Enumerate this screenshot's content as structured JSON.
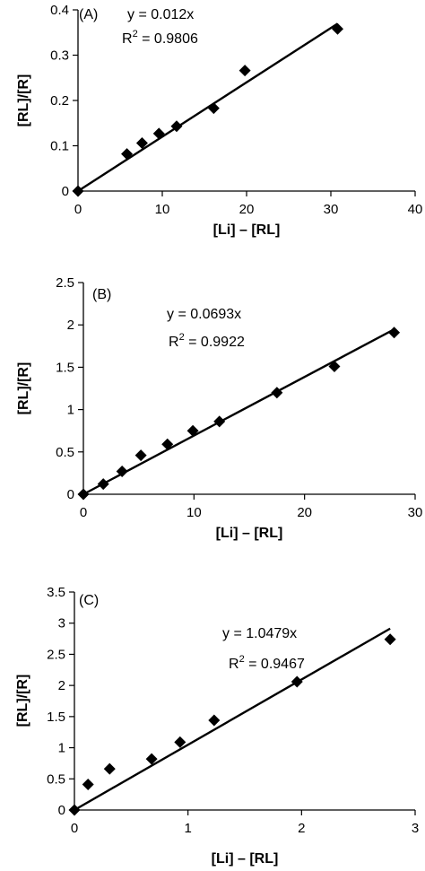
{
  "chart_data": [
    {
      "type": "scatter",
      "panel_label": "(A)",
      "xlabel": "[Li] – [RL]",
      "ylabel": "[RL]/[R]",
      "xlim": [
        0,
        40
      ],
      "ylim": [
        0,
        0.4
      ],
      "x_ticks": [
        0,
        10,
        20,
        30,
        40
      ],
      "y_ticks": [
        0,
        0.1,
        0.2,
        0.3,
        0.4
      ],
      "grid": false,
      "series": [
        {
          "marker": "diamond",
          "color": "#000000",
          "points": [
            {
              "x": 0,
              "y": 0
            },
            {
              "x": 5.8,
              "y": 0.082
            },
            {
              "x": 7.6,
              "y": 0.106
            },
            {
              "x": 9.6,
              "y": 0.127
            },
            {
              "x": 11.7,
              "y": 0.143
            },
            {
              "x": 16.1,
              "y": 0.183
            },
            {
              "x": 19.8,
              "y": 0.266
            },
            {
              "x": 30.8,
              "y": 0.358
            }
          ]
        }
      ],
      "trendline": {
        "slope": 0.012,
        "x_end": 30.8
      },
      "equation": "y = 0.012x",
      "r2_prefix": "R",
      "r2_sup": "2",
      "r2_value": " = 0.9806"
    },
    {
      "type": "scatter",
      "panel_label": "(B)",
      "xlabel": "[Li] – [RL]",
      "ylabel": "[RL]/[R]",
      "xlim": [
        0,
        30
      ],
      "ylim": [
        0,
        2.5
      ],
      "x_ticks": [
        0,
        10,
        20,
        30
      ],
      "y_ticks": [
        0,
        0.5,
        1,
        1.5,
        2,
        2.5
      ],
      "grid": false,
      "series": [
        {
          "marker": "diamond",
          "color": "#000000",
          "points": [
            {
              "x": 0,
              "y": 0
            },
            {
              "x": 1.8,
              "y": 0.12
            },
            {
              "x": 3.5,
              "y": 0.27
            },
            {
              "x": 5.2,
              "y": 0.46
            },
            {
              "x": 7.6,
              "y": 0.59
            },
            {
              "x": 9.9,
              "y": 0.75
            },
            {
              "x": 12.3,
              "y": 0.86
            },
            {
              "x": 17.5,
              "y": 1.2
            },
            {
              "x": 22.7,
              "y": 1.51
            },
            {
              "x": 28.1,
              "y": 1.91
            }
          ]
        }
      ],
      "trendline": {
        "slope": 0.0693,
        "x_end": 28.1
      },
      "equation": "y = 0.0693x",
      "r2_prefix": "R",
      "r2_sup": "2",
      "r2_value": " = 0.9922"
    },
    {
      "type": "scatter",
      "panel_label": "(C)",
      "xlabel": "[Li] – [RL]",
      "ylabel": "[RL]/[R]",
      "xlim": [
        0,
        3
      ],
      "ylim": [
        0,
        3.5
      ],
      "x_ticks": [
        0,
        1,
        2,
        3
      ],
      "y_ticks": [
        0,
        0.5,
        1,
        1.5,
        2,
        2.5,
        3,
        3.5
      ],
      "grid": false,
      "series": [
        {
          "marker": "diamond",
          "color": "#000000",
          "points": [
            {
              "x": 0,
              "y": 0
            },
            {
              "x": 0.12,
              "y": 0.41
            },
            {
              "x": 0.31,
              "y": 0.66
            },
            {
              "x": 0.68,
              "y": 0.82
            },
            {
              "x": 0.93,
              "y": 1.09
            },
            {
              "x": 1.23,
              "y": 1.44
            },
            {
              "x": 1.96,
              "y": 2.06
            },
            {
              "x": 2.78,
              "y": 2.74
            }
          ]
        }
      ],
      "trendline": {
        "slope": 1.0479,
        "x_end": 2.78
      },
      "equation": "y = 1.0479x",
      "r2_prefix": "R",
      "r2_sup": "2",
      "r2_value": " = 0.9467"
    }
  ]
}
